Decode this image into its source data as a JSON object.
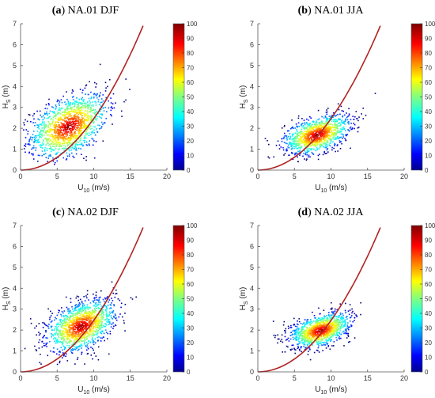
{
  "chart_data": [
    {
      "type": "scatter",
      "panel_letter": "(a)",
      "title": "NA.01 DJF",
      "xlabel_main": "U",
      "xlabel_sub": "10",
      "xlabel_unit": " (m/s)",
      "ylabel_main": "H",
      "ylabel_sub": "S",
      "ylabel_unit": " (m)",
      "xlim": [
        0,
        20
      ],
      "ylim": [
        0,
        7
      ],
      "xticks": [
        0,
        5,
        10,
        15,
        20
      ],
      "yticks": [
        0,
        1,
        2,
        3,
        4,
        5,
        6,
        7
      ],
      "colorbar": {
        "min": 0,
        "max": 100,
        "ticks": [
          0,
          10,
          20,
          30,
          40,
          50,
          60,
          70,
          80,
          90,
          100
        ]
      },
      "cloud": {
        "center": [
          6.5,
          2.1
        ],
        "spread": [
          2.6,
          0.75
        ],
        "count": 1400
      },
      "curve_color": "#b22222"
    },
    {
      "type": "scatter",
      "panel_letter": "(b)",
      "title": "NA.01 JJA",
      "xlabel_main": "U",
      "xlabel_sub": "10",
      "xlabel_unit": " (m/s)",
      "ylabel_main": "H",
      "ylabel_sub": "S",
      "ylabel_unit": " (m)",
      "xlim": [
        0,
        20
      ],
      "ylim": [
        0,
        7
      ],
      "xticks": [
        0,
        5,
        10,
        15,
        20
      ],
      "yticks": [
        0,
        1,
        2,
        3,
        4,
        5,
        6,
        7
      ],
      "colorbar": {
        "min": 0,
        "max": 100,
        "ticks": [
          0,
          10,
          20,
          30,
          40,
          50,
          60,
          70,
          80,
          90,
          100
        ]
      },
      "cloud": {
        "center": [
          8.0,
          1.7
        ],
        "spread": [
          2.2,
          0.45
        ],
        "count": 1200
      },
      "curve_color": "#b22222"
    },
    {
      "type": "scatter",
      "panel_letter": "(c)",
      "title": "NA.02 DJF",
      "xlabel_main": "U",
      "xlabel_sub": "10",
      "xlabel_unit": " (m/s)",
      "ylabel_main": "H",
      "ylabel_sub": "S",
      "ylabel_unit": " (m)",
      "xlim": [
        0,
        20
      ],
      "ylim": [
        0,
        7
      ],
      "xticks": [
        0,
        5,
        10,
        15,
        20
      ],
      "yticks": [
        0,
        1,
        2,
        3,
        4,
        5,
        6,
        7
      ],
      "colorbar": {
        "min": 0,
        "max": 100,
        "ticks": [
          0,
          10,
          20,
          30,
          40,
          50,
          60,
          70,
          80,
          90,
          100
        ]
      },
      "cloud": {
        "center": [
          8.2,
          2.2
        ],
        "spread": [
          2.3,
          0.6
        ],
        "count": 1400
      },
      "curve_color": "#b22222"
    },
    {
      "type": "scatter",
      "panel_letter": "(d)",
      "title": "NA.02 JJA",
      "xlabel_main": "U",
      "xlabel_sub": "10",
      "xlabel_unit": " (m/s)",
      "ylabel_main": "H",
      "ylabel_sub": "S",
      "ylabel_unit": " (m)",
      "xlim": [
        0,
        20
      ],
      "ylim": [
        0,
        7
      ],
      "xticks": [
        0,
        5,
        10,
        15,
        20
      ],
      "yticks": [
        0,
        1,
        2,
        3,
        4,
        5,
        6,
        7
      ],
      "colorbar": {
        "min": 0,
        "max": 100,
        "ticks": [
          0,
          10,
          20,
          30,
          40,
          50,
          60,
          70,
          80,
          90,
          100
        ]
      },
      "cloud": {
        "center": [
          8.5,
          2.0
        ],
        "spread": [
          2.0,
          0.4
        ],
        "count": 1200
      },
      "curve_color": "#b22222"
    }
  ]
}
